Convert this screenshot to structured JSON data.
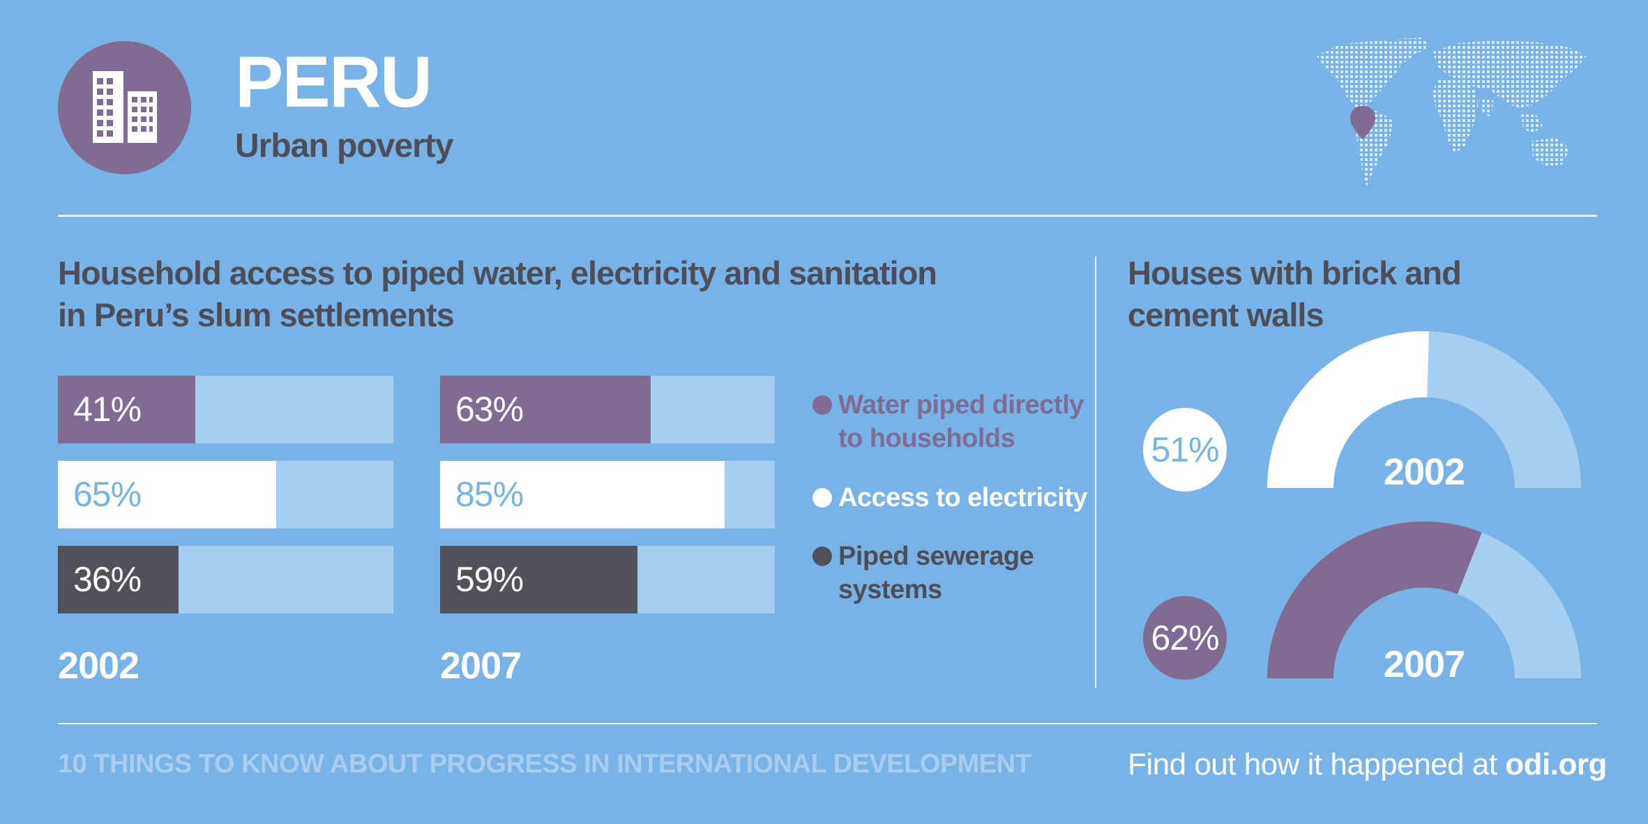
{
  "header": {
    "title": "PERU",
    "subtitle": "Urban poverty"
  },
  "colors": {
    "background": "#78b3e8",
    "purple": "#806c93",
    "white": "#ffffff",
    "dark": "#515259",
    "track": "#a5cef1",
    "light_text": "#78b3e8"
  },
  "chart_data": [
    {
      "type": "bar",
      "title": "Household access to piped water, electricity and sanitation in Peru’s slum settlements",
      "title_line1": "Household access to piped water, electricity and sanitation",
      "title_line2": "in Peru’s slum settlements",
      "categories": [
        "2002",
        "2007"
      ],
      "series": [
        {
          "name": "Water piped directly to households",
          "values": [
            41,
            63
          ]
        },
        {
          "name": "Access to electricity",
          "values": [
            65,
            85
          ]
        },
        {
          "name": "Piped sewerage systems",
          "values": [
            36,
            59
          ]
        }
      ],
      "ylim": [
        0,
        100
      ],
      "value_labels": {
        "y2002": [
          "41%",
          "65%",
          "36%"
        ],
        "y2007": [
          "63%",
          "85%",
          "59%"
        ]
      },
      "legend": {
        "water_line1": "Water piped directly",
        "water_line2": "to households",
        "electricity": "Access to electricity",
        "sewer_line1": "Piped sewerage",
        "sewer_line2": "systems"
      }
    },
    {
      "type": "pie",
      "title": "Houses with brick and cement walls",
      "title_line1": "Houses with brick and",
      "title_line2": "cement walls",
      "categories": [
        "2002",
        "2007"
      ],
      "values": [
        51,
        62
      ],
      "value_labels": [
        "51%",
        "62%"
      ]
    }
  ],
  "footer": {
    "left": "10 THINGS TO KNOW ABOUT PROGRESS IN INTERNATIONAL DEVELOPMENT",
    "right_prefix": "Find out how it happened at",
    "right_link": "odi.org"
  }
}
